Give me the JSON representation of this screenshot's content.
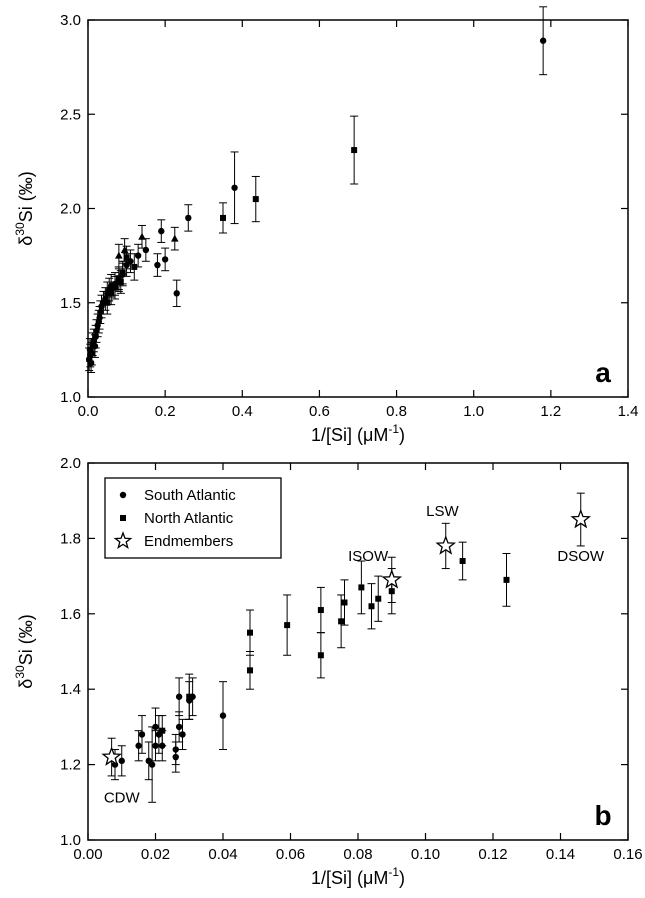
{
  "chart_data": [
    {
      "type": "scatter",
      "panel_label": "a",
      "ylabel_prefix": "δ",
      "ylabel_sup": "30",
      "ylabel_main": "Si (‰)",
      "xlabel_main": "1/[Si] (μM",
      "xlabel_sup": "-1",
      "xlabel_end": ")",
      "xlim": [
        0,
        1.4
      ],
      "ylim": [
        1.0,
        3.0
      ],
      "xticks": [
        "0.0",
        "0.2",
        "0.4",
        "0.6",
        "0.8",
        "1.0",
        "1.2",
        "1.4"
      ],
      "yticks": [
        "1.0",
        "1.5",
        "2.0",
        "2.5",
        "3.0"
      ],
      "series": [
        {
          "marker": "circle",
          "points": [
            [
              0.003,
              1.2,
              0.06
            ],
            [
              0.005,
              1.25,
              0.06
            ],
            [
              0.006,
              1.22,
              0.06
            ],
            [
              0.008,
              1.18,
              0.05
            ],
            [
              0.01,
              1.23,
              0.06
            ],
            [
              0.012,
              1.28,
              0.06
            ],
            [
              0.015,
              1.3,
              0.06
            ],
            [
              0.018,
              1.27,
              0.06
            ],
            [
              0.02,
              1.32,
              0.06
            ],
            [
              0.022,
              1.35,
              0.06
            ],
            [
              0.025,
              1.38,
              0.06
            ],
            [
              0.028,
              1.4,
              0.06
            ],
            [
              0.03,
              1.42,
              0.06
            ],
            [
              0.032,
              1.45,
              0.06
            ],
            [
              0.035,
              1.48,
              0.06
            ],
            [
              0.04,
              1.5,
              0.06
            ],
            [
              0.045,
              1.52,
              0.06
            ],
            [
              0.05,
              1.55,
              0.06
            ],
            [
              0.055,
              1.57,
              0.06
            ],
            [
              0.06,
              1.59,
              0.06
            ],
            [
              0.07,
              1.6,
              0.06
            ],
            [
              0.08,
              1.62,
              0.06
            ],
            [
              0.09,
              1.65,
              0.06
            ],
            [
              0.1,
              1.7,
              0.06
            ],
            [
              0.11,
              1.72,
              0.06
            ],
            [
              0.13,
              1.75,
              0.06
            ],
            [
              0.15,
              1.78,
              0.06
            ],
            [
              0.18,
              1.7,
              0.06
            ],
            [
              0.19,
              1.88,
              0.06
            ],
            [
              0.2,
              1.73,
              0.06
            ],
            [
              0.23,
              1.55,
              0.07
            ],
            [
              0.26,
              1.95,
              0.07
            ],
            [
              0.38,
              2.11,
              0.19
            ],
            [
              1.18,
              2.89,
              0.18
            ]
          ]
        },
        {
          "marker": "square",
          "points": [
            [
              0.05,
              1.5,
              0.06
            ],
            [
              0.06,
              1.55,
              0.06
            ],
            [
              0.07,
              1.58,
              0.06
            ],
            [
              0.08,
              1.63,
              0.06
            ],
            [
              0.085,
              1.61,
              0.06
            ],
            [
              0.09,
              1.66,
              0.06
            ],
            [
              0.1,
              1.74,
              0.06
            ],
            [
              0.12,
              1.69,
              0.07
            ],
            [
              0.35,
              1.95,
              0.08
            ],
            [
              0.435,
              2.05,
              0.12
            ],
            [
              0.69,
              2.31,
              0.18
            ]
          ]
        },
        {
          "marker": "triangle",
          "points": [
            [
              0.08,
              1.75,
              0.06
            ],
            [
              0.095,
              1.78,
              0.06
            ],
            [
              0.14,
              1.85,
              0.06
            ],
            [
              0.225,
              1.84,
              0.06
            ]
          ]
        }
      ]
    },
    {
      "type": "scatter",
      "panel_label": "b",
      "ylabel_prefix": "δ",
      "ylabel_sup": "30",
      "ylabel_main": "Si (‰)",
      "xlabel_main": "1/[Si] (μM",
      "xlabel_sup": "-1",
      "xlabel_end": ")",
      "xlim": [
        0,
        0.16
      ],
      "ylim": [
        1.0,
        2.0
      ],
      "xticks": [
        "0.00",
        "0.02",
        "0.04",
        "0.06",
        "0.08",
        "0.10",
        "0.12",
        "0.14",
        "0.16"
      ],
      "yticks": [
        "1.0",
        "1.2",
        "1.4",
        "1.6",
        "1.8",
        "2.0"
      ],
      "legend": {
        "position": "top-left",
        "entries": [
          {
            "marker": "circle",
            "label": "South Atlantic"
          },
          {
            "marker": "square",
            "label": "North Atlantic"
          },
          {
            "marker": "star",
            "label": "Endmembers"
          }
        ]
      },
      "series": [
        {
          "name": "South Atlantic",
          "marker": "circle",
          "points": [
            [
              0.008,
              1.2,
              0.04
            ],
            [
              0.01,
              1.21,
              0.04
            ],
            [
              0.015,
              1.25,
              0.04
            ],
            [
              0.016,
              1.28,
              0.05
            ],
            [
              0.018,
              1.21,
              0.05
            ],
            [
              0.019,
              1.2,
              0.1
            ],
            [
              0.02,
              1.25,
              0.04
            ],
            [
              0.02,
              1.3,
              0.05
            ],
            [
              0.021,
              1.28,
              0.05
            ],
            [
              0.022,
              1.25,
              0.04
            ],
            [
              0.026,
              1.24,
              0.04
            ],
            [
              0.026,
              1.22,
              0.04
            ],
            [
              0.027,
              1.38,
              0.05
            ],
            [
              0.027,
              1.3,
              0.04
            ],
            [
              0.028,
              1.28,
              0.04
            ],
            [
              0.03,
              1.37,
              0.05
            ],
            [
              0.031,
              1.38,
              0.05
            ],
            [
              0.04,
              1.33,
              0.09
            ]
          ]
        },
        {
          "name": "North Atlantic",
          "marker": "square",
          "points": [
            [
              0.022,
              1.29,
              0.04
            ],
            [
              0.03,
              1.38,
              0.06
            ],
            [
              0.048,
              1.45,
              0.05
            ],
            [
              0.048,
              1.55,
              0.06
            ],
            [
              0.059,
              1.57,
              0.08
            ],
            [
              0.069,
              1.49,
              0.06
            ],
            [
              0.069,
              1.61,
              0.06
            ],
            [
              0.075,
              1.58,
              0.07
            ],
            [
              0.076,
              1.63,
              0.06
            ],
            [
              0.081,
              1.67,
              0.07
            ],
            [
              0.084,
              1.62,
              0.06
            ],
            [
              0.086,
              1.64,
              0.06
            ],
            [
              0.09,
              1.66,
              0.06
            ],
            [
              0.111,
              1.74,
              0.05
            ],
            [
              0.124,
              1.69,
              0.07
            ]
          ]
        },
        {
          "name": "Endmembers",
          "marker": "star",
          "points": [
            [
              0.007,
              1.22,
              0.05
            ],
            [
              0.09,
              1.69,
              0.06
            ],
            [
              0.106,
              1.78,
              0.06
            ],
            [
              0.146,
              1.85,
              0.07
            ]
          ]
        }
      ],
      "annotations": [
        {
          "text": "CDW",
          "x": 0.01,
          "y": 1.1
        },
        {
          "text": "ISOW",
          "x": 0.083,
          "y": 1.74
        },
        {
          "text": "LSW",
          "x": 0.105,
          "y": 1.86
        },
        {
          "text": "DSOW",
          "x": 0.146,
          "y": 1.74
        }
      ]
    }
  ]
}
